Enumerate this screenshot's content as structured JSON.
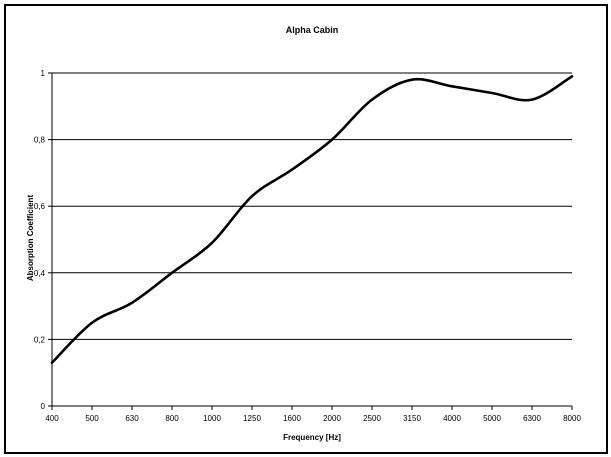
{
  "chart_data": {
    "type": "line",
    "title": "Alpha Cabin",
    "xlabel": "Frequency [Hz]",
    "ylabel": "Absorption Coefficient",
    "categories": [
      "400",
      "500",
      "630",
      "800",
      "1000",
      "1250",
      "1600",
      "2000",
      "2500",
      "3150",
      "4000",
      "5000",
      "6300",
      "8000"
    ],
    "x_scale": "log",
    "ylim": [
      0,
      1
    ],
    "yticks": [
      "0",
      "0,2",
      "0,4",
      "0,6",
      "0,8",
      "1"
    ],
    "grid": "horizontal",
    "legend": "none",
    "series": [
      {
        "values": [
          0.13,
          0.25,
          0.31,
          0.4,
          0.49,
          0.63,
          0.71,
          0.8,
          0.92,
          0.98,
          0.96,
          0.94,
          0.92,
          0.99
        ]
      }
    ],
    "colors": {
      "line": "#000000",
      "grid": "#000000",
      "background": "#ffffff"
    }
  }
}
